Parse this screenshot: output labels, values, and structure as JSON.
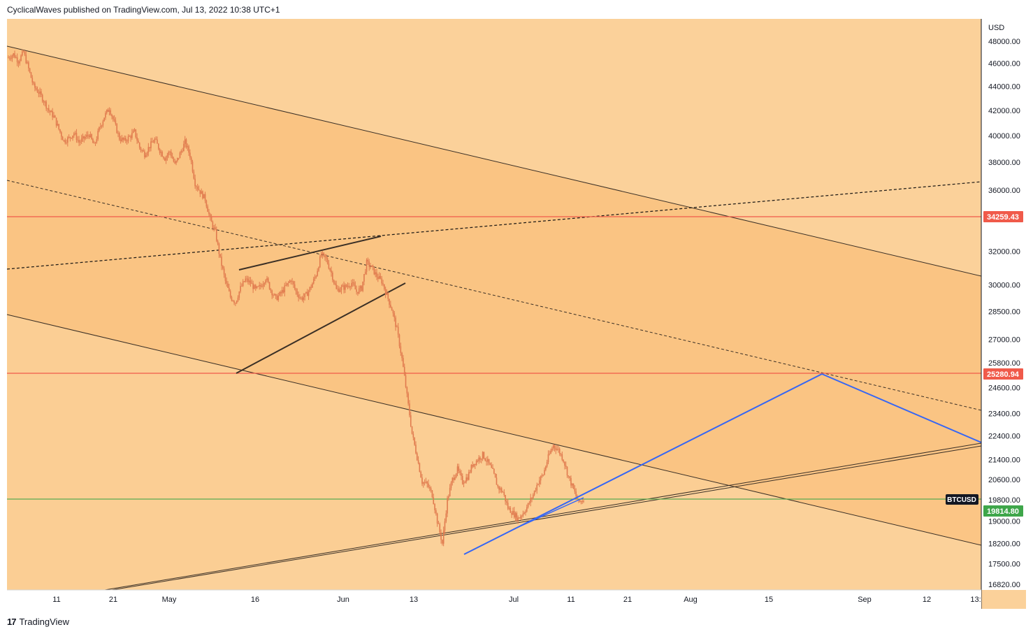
{
  "header": {
    "publisher_line": "CyclicalWaves published on TradingView.com, Jul 13, 2022 10:38 UTC+1"
  },
  "footer": {
    "brand_mark": "17",
    "brand_name": "TradingView"
  },
  "colors": {
    "background": "#fbd19a",
    "channel_fill": "#f9c27f",
    "candle": "#e07a4e",
    "resistance_line": "#f05a4a",
    "current_price_line": "#5aaa52",
    "current_price_badge": "#3ea64a",
    "projection_line": "#3566f5",
    "trend_line": "#2f2a26"
  },
  "chart_data": {
    "type": "candlestick",
    "symbol": "BTCUSD",
    "currency_label": "USD",
    "ylim": [
      16500,
      49000
    ],
    "y_scale": "log",
    "price_ticks": [
      48000,
      46000,
      44000,
      42000,
      40000,
      38000,
      36000,
      34259.43,
      32000,
      30000,
      28500,
      27000,
      25800,
      25280.94,
      24600,
      23400,
      22400,
      21400,
      20600,
      19814.8,
      19800,
      19000,
      18200,
      17500,
      16820
    ],
    "price_tick_labels": [
      "48000.00",
      "46000.00",
      "44000.00",
      "42000.00",
      "40000.00",
      "38000.00",
      "36000.00",
      "32000.00",
      "30000.00",
      "28500.00",
      "27000.00",
      "25800.00",
      "24600.00",
      "23400.00",
      "22400.00",
      "21400.00",
      "20600.00",
      "19800.00",
      "19000.00",
      "18200.00",
      "17500.00",
      "16820.00"
    ],
    "x_ticks": [
      "11",
      "21",
      "May",
      "16",
      "Jun",
      "13",
      "Jul",
      "11",
      "21",
      "Aug",
      "15",
      "Sep",
      "12",
      "13:"
    ],
    "horizontal_levels": [
      {
        "value": 34259.43,
        "label": "34259.43",
        "color": "#f05a4a"
      },
      {
        "value": 25280.94,
        "label": "25280.94",
        "color": "#f05a4a"
      }
    ],
    "current_price": {
      "value": 19814.8,
      "label": "19814.80",
      "symbol_tag": "BTCUSD"
    },
    "close_series": [
      46500,
      46800,
      46200,
      47000,
      45500,
      44000,
      43500,
      42800,
      42000,
      41500,
      40500,
      39600,
      39800,
      40200,
      39500,
      39800,
      40100,
      39200,
      40500,
      41500,
      42200,
      41000,
      39800,
      39600,
      39900,
      40300,
      39100,
      38600,
      39200,
      39700,
      38900,
      38300,
      38800,
      37800,
      38600,
      39500,
      38500,
      36500,
      35900,
      35400,
      34000,
      33200,
      31500,
      30200,
      29300,
      29000,
      29800,
      30300,
      30100,
      29700,
      29900,
      30400,
      29700,
      29200,
      29500,
      29900,
      30300,
      29600,
      29200,
      29400,
      29900,
      30600,
      31800,
      31500,
      30700,
      29700,
      29800,
      29900,
      30100,
      29600,
      29800,
      31300,
      31000,
      30500,
      30200,
      29400,
      28600,
      27500,
      26000,
      24200,
      22500,
      21500,
      20500,
      20400,
      20000,
      19000,
      18200,
      19800,
      20600,
      21000,
      20500,
      20700,
      21200,
      21400,
      21600,
      21300,
      20900,
      20300,
      20100,
      19500,
      19300,
      19100,
      19300,
      19600,
      20000,
      20500,
      20800,
      21500,
      22000,
      21800,
      21400,
      20700,
      20200,
      19700,
      19800
    ]
  }
}
